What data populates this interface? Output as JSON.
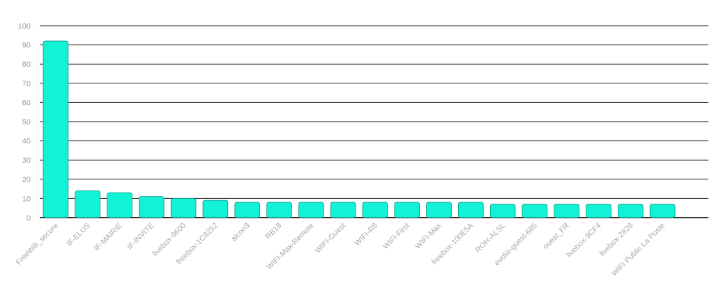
{
  "chart_data": {
    "type": "bar",
    "title": "",
    "xlabel": "",
    "ylabel": "",
    "ylim": [
      0,
      100
    ],
    "yticks": [
      0,
      10,
      20,
      30,
      40,
      50,
      60,
      70,
      80,
      90,
      100
    ],
    "grid": true,
    "legend": "none",
    "bar_color": "#12f2d6",
    "bar_stroke": "#0a8f80",
    "categories": [
      "FreeWifi_secure",
      "IF-ELUS",
      "IF-MAIRIE",
      "IF-INVITE",
      "livebox-9600",
      "freebox-1C8252",
      "alcon3",
      "RB18",
      "WIFI-Max-Remote",
      "WIFI-Guest",
      "WIFI-R8",
      "WIFI-First",
      "WIFI-Max",
      "freebox-100E5A",
      "ROH-ALSL",
      "evolio-guest-685",
      "ouest_FR",
      "livebox-9CF4",
      "livebox-2828",
      "WIFI Public La Poste"
    ],
    "values": [
      92,
      14,
      13,
      11,
      10,
      9,
      8,
      8,
      8,
      8,
      8,
      8,
      8,
      8,
      7,
      7,
      7,
      7,
      7,
      7
    ]
  }
}
